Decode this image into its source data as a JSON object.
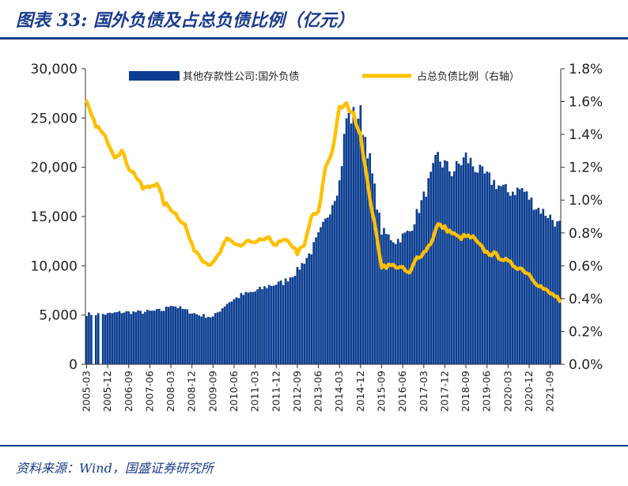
{
  "figure": {
    "title": "图表 33: 国外负债及占总负债比例（亿元）",
    "source": "资料来源：Wind，国盛证券研究所"
  },
  "colors": {
    "bar": "#0b3d91",
    "line": "#ffc000",
    "brand": "#1a3b8f"
  },
  "chart_data": {
    "type": "bar",
    "title": "",
    "xlabel": "",
    "ylabel": "",
    "ylim": [
      0,
      30000
    ],
    "y2lim": [
      0,
      1.8
    ],
    "legend_position": "top",
    "grid": false,
    "yticks": [
      "0",
      "5,000",
      "10,000",
      "15,000",
      "20,000",
      "25,000",
      "30,000"
    ],
    "y2ticks": [
      "0.0%",
      "0.2%",
      "0.4%",
      "0.6%",
      "0.8%",
      "1.0%",
      "1.2%",
      "1.4%",
      "1.6%",
      "1.8%"
    ],
    "xticks": [
      "2005-03",
      "2005-12",
      "2006-09",
      "2007-06",
      "2008-03",
      "2008-12",
      "2009-09",
      "2010-06",
      "2011-03",
      "2011-12",
      "2012-09",
      "2013-06",
      "2014-03",
      "2014-12",
      "2015-09",
      "2016-06",
      "2017-03",
      "2017-12",
      "2018-09",
      "2019-06",
      "2020-03",
      "2020-12",
      "2021-09"
    ],
    "series": [
      {
        "name": "其他存款性公司:国外负债",
        "type": "bar",
        "axis": "left",
        "anchors": [
          [
            "2005-03",
            5100
          ],
          [
            "2005-12",
            5100
          ],
          [
            "2006-06",
            5300
          ],
          [
            "2007-03",
            5300
          ],
          [
            "2007-12",
            5500
          ],
          [
            "2008-03",
            6100
          ],
          [
            "2008-09",
            5500
          ],
          [
            "2009-03",
            5000
          ],
          [
            "2009-09",
            4800
          ],
          [
            "2010-03",
            6200
          ],
          [
            "2010-09",
            7000
          ],
          [
            "2011-03",
            7400
          ],
          [
            "2011-09",
            8000
          ],
          [
            "2012-03",
            8300
          ],
          [
            "2012-09",
            9500
          ],
          [
            "2013-03",
            11500
          ],
          [
            "2013-09",
            14500
          ],
          [
            "2014-03",
            18500
          ],
          [
            "2014-06",
            25000
          ],
          [
            "2014-12",
            25300
          ],
          [
            "2015-03",
            22000
          ],
          [
            "2015-09",
            13500
          ],
          [
            "2016-03",
            12500
          ],
          [
            "2016-09",
            13500
          ],
          [
            "2017-03",
            17000
          ],
          [
            "2017-09",
            21000
          ],
          [
            "2018-03",
            19500
          ],
          [
            "2018-09",
            21000
          ],
          [
            "2019-03",
            19500
          ],
          [
            "2019-09",
            18500
          ],
          [
            "2020-03",
            17500
          ],
          [
            "2020-09",
            17800
          ],
          [
            "2021-03",
            16000
          ],
          [
            "2021-09",
            15000
          ],
          [
            "2021-12",
            14200
          ]
        ],
        "missing": [
          "2005-06",
          "2005-09"
        ]
      },
      {
        "name": "占总负债比例（右轴）",
        "type": "line",
        "axis": "right",
        "anchors": [
          [
            "2005-03",
            1.59
          ],
          [
            "2005-06",
            1.48
          ],
          [
            "2005-12",
            1.36
          ],
          [
            "2006-03",
            1.27
          ],
          [
            "2006-06",
            1.3
          ],
          [
            "2006-09",
            1.2
          ],
          [
            "2006-12",
            1.15
          ],
          [
            "2007-03",
            1.07
          ],
          [
            "2007-06",
            1.08
          ],
          [
            "2007-09",
            1.11
          ],
          [
            "2007-12",
            0.98
          ],
          [
            "2008-03",
            0.95
          ],
          [
            "2008-06",
            0.9
          ],
          [
            "2008-09",
            0.85
          ],
          [
            "2008-12",
            0.72
          ],
          [
            "2009-03",
            0.67
          ],
          [
            "2009-06",
            0.62
          ],
          [
            "2009-09",
            0.61
          ],
          [
            "2009-12",
            0.68
          ],
          [
            "2010-03",
            0.76
          ],
          [
            "2010-06",
            0.74
          ],
          [
            "2010-09",
            0.72
          ],
          [
            "2010-12",
            0.75
          ],
          [
            "2011-03",
            0.73
          ],
          [
            "2011-06",
            0.76
          ],
          [
            "2011-09",
            0.76
          ],
          [
            "2011-12",
            0.73
          ],
          [
            "2012-03",
            0.75
          ],
          [
            "2012-06",
            0.74
          ],
          [
            "2012-09",
            0.68
          ],
          [
            "2012-12",
            0.72
          ],
          [
            "2013-03",
            0.9
          ],
          [
            "2013-06",
            0.92
          ],
          [
            "2013-09",
            1.2
          ],
          [
            "2013-12",
            1.3
          ],
          [
            "2014-03",
            1.56
          ],
          [
            "2014-06",
            1.58
          ],
          [
            "2014-09",
            1.52
          ],
          [
            "2014-12",
            1.4
          ],
          [
            "2015-03",
            1.1
          ],
          [
            "2015-06",
            0.85
          ],
          [
            "2015-09",
            0.6
          ],
          [
            "2016-03",
            0.6
          ],
          [
            "2016-06",
            0.58
          ],
          [
            "2016-09",
            0.55
          ],
          [
            "2016-12",
            0.65
          ],
          [
            "2017-03",
            0.68
          ],
          [
            "2017-06",
            0.74
          ],
          [
            "2017-09",
            0.85
          ],
          [
            "2017-12",
            0.83
          ],
          [
            "2018-03",
            0.8
          ],
          [
            "2018-06",
            0.77
          ],
          [
            "2018-09",
            0.78
          ],
          [
            "2018-12",
            0.77
          ],
          [
            "2019-03",
            0.72
          ],
          [
            "2019-06",
            0.68
          ],
          [
            "2019-09",
            0.67
          ],
          [
            "2019-12",
            0.65
          ],
          [
            "2020-03",
            0.62
          ],
          [
            "2020-06",
            0.6
          ],
          [
            "2020-09",
            0.58
          ],
          [
            "2020-12",
            0.55
          ],
          [
            "2021-03",
            0.5
          ],
          [
            "2021-06",
            0.46
          ],
          [
            "2021-09",
            0.43
          ],
          [
            "2021-12",
            0.41
          ],
          [
            "2022-01",
            0.37
          ]
        ]
      }
    ]
  }
}
